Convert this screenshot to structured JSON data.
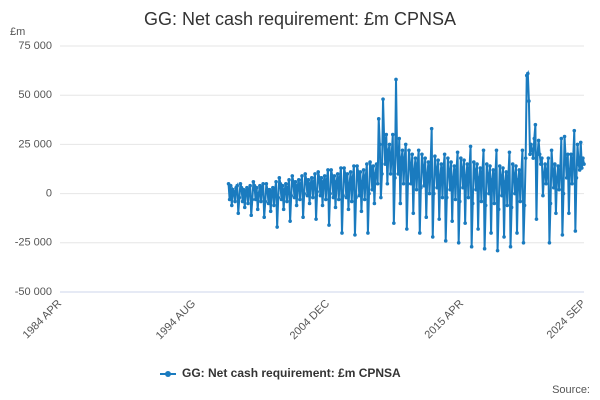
{
  "chart_data": {
    "type": "line",
    "title": "GG: Net cash requirement: £m CPNSA",
    "y_unit": "£m",
    "source": "Source:",
    "categories": [
      "1984 APR",
      null,
      null,
      null,
      null,
      null,
      null,
      null,
      null,
      null,
      null,
      null,
      null,
      null,
      null,
      null,
      null,
      null,
      null,
      null,
      null,
      null,
      null,
      null,
      null,
      null,
      null,
      null,
      null,
      null,
      null,
      null,
      null,
      null,
      null,
      null,
      null,
      null,
      null,
      null,
      null,
      null,
      null,
      null,
      null,
      null,
      null,
      null,
      null,
      null,
      null,
      null,
      null,
      null,
      null,
      null,
      null,
      null,
      null,
      null,
      null,
      null,
      null,
      null,
      null,
      null,
      null,
      null,
      null,
      null,
      null,
      null,
      null,
      null,
      null,
      null,
      null,
      null,
      null,
      null,
      null,
      null,
      null,
      null,
      null,
      null,
      null,
      null,
      null,
      null,
      null,
      null,
      null,
      null,
      null,
      null,
      null,
      null,
      null,
      null,
      null,
      null,
      null,
      null,
      null,
      null,
      null,
      null,
      null,
      null,
      null,
      null,
      null,
      null,
      null,
      null,
      null,
      null,
      null,
      null,
      null,
      null,
      null,
      null,
      "1994 AUG",
      null,
      null,
      null,
      null,
      null,
      null,
      null,
      null,
      null,
      null,
      null,
      null,
      null,
      null,
      null,
      null,
      null,
      null,
      null,
      null,
      null,
      null,
      null,
      null,
      null,
      null,
      null,
      null,
      null,
      null,
      null,
      null,
      null,
      null,
      null,
      null,
      null,
      null,
      null,
      null,
      null,
      null,
      null,
      null,
      null,
      null,
      null,
      null,
      null,
      null,
      null,
      null,
      null,
      null,
      null,
      null,
      null,
      null,
      null,
      null,
      null,
      null,
      null,
      null,
      null,
      null,
      null,
      null,
      null,
      null,
      null,
      null,
      null,
      null,
      null,
      null,
      null,
      null,
      null,
      null,
      null,
      null,
      null,
      null,
      null,
      null,
      null,
      null,
      null,
      null,
      null,
      null,
      null,
      null,
      null,
      null,
      null,
      null,
      null,
      null,
      null,
      null,
      null,
      null,
      null,
      null,
      null,
      null,
      null,
      null,
      null,
      null,
      null,
      null,
      null,
      null,
      null,
      null,
      null,
      null,
      null,
      null,
      null,
      "2004 DEC",
      null,
      null,
      null,
      null,
      null,
      null,
      null,
      null,
      null,
      null,
      null,
      null,
      null,
      null,
      null,
      null,
      null,
      null,
      null,
      null,
      null,
      null,
      null,
      null,
      null,
      null,
      null,
      null,
      null,
      null,
      null,
      null,
      null,
      null,
      null,
      null,
      null,
      null,
      null,
      null,
      null,
      null,
      null,
      null,
      null,
      null,
      null,
      null,
      null,
      null,
      null,
      null,
      null,
      null,
      null,
      null,
      null,
      null,
      null,
      null,
      null,
      null,
      null,
      null,
      null,
      null,
      null,
      null,
      null,
      null,
      null,
      null,
      null,
      null,
      null,
      null,
      null,
      null,
      null,
      null,
      null,
      null,
      null,
      null,
      null,
      null,
      null,
      null,
      null,
      null,
      null,
      null,
      null,
      null,
      null,
      null,
      null,
      null,
      null,
      null,
      null,
      null,
      null,
      null,
      null,
      null,
      null,
      null,
      null,
      null,
      null,
      null,
      null,
      null,
      null,
      null,
      null,
      null,
      null,
      null,
      null,
      null,
      null,
      "2015 APR",
      null,
      null,
      null,
      null,
      null,
      null,
      null,
      null,
      null,
      null,
      null,
      null,
      null,
      null,
      null,
      null,
      null,
      null,
      null,
      null,
      null,
      null,
      null,
      null,
      null,
      null,
      null,
      null,
      null,
      null,
      null,
      null,
      null,
      null,
      null,
      null,
      null,
      null,
      null,
      null,
      null,
      null,
      null,
      null,
      null,
      null,
      null,
      null,
      null,
      null,
      null,
      null,
      null,
      null,
      null,
      null,
      null,
      null,
      null,
      null,
      null,
      null,
      null,
      null,
      null,
      null,
      null,
      null,
      null,
      null,
      null,
      null,
      null,
      null,
      null,
      null,
      null,
      null,
      null,
      null,
      null,
      null,
      null,
      null,
      null,
      null,
      null,
      null,
      null,
      null,
      null,
      null,
      null,
      null,
      null,
      null,
      null,
      null,
      null,
      null,
      null,
      null,
      null,
      null,
      null,
      null,
      null,
      null,
      null,
      null,
      null,
      null,
      "2024 SEP"
    ],
    "series": [
      {
        "name": "GG: Net cash requirement: £m CPNSA",
        "color": "#1a7bbf",
        "values": [
          null,
          null,
          null,
          null,
          null,
          null,
          null,
          null,
          null,
          null,
          null,
          null,
          null,
          null,
          null,
          null,
          null,
          null,
          null,
          null,
          null,
          null,
          null,
          null,
          null,
          null,
          null,
          null,
          null,
          null,
          null,
          null,
          null,
          null,
          null,
          null,
          null,
          null,
          null,
          null,
          null,
          null,
          null,
          null,
          null,
          null,
          null,
          null,
          null,
          null,
          null,
          null,
          null,
          null,
          null,
          null,
          null,
          null,
          null,
          null,
          null,
          null,
          null,
          null,
          null,
          null,
          null,
          null,
          null,
          null,
          null,
          null,
          null,
          null,
          null,
          null,
          null,
          null,
          null,
          null,
          null,
          null,
          null,
          null,
          null,
          null,
          null,
          null,
          null,
          null,
          null,
          null,
          null,
          null,
          null,
          null,
          null,
          null,
          null,
          null,
          null,
          null,
          null,
          null,
          null,
          null,
          null,
          null,
          null,
          null,
          null,
          null,
          null,
          null,
          null,
          null,
          null,
          null,
          null,
          null,
          null,
          null,
          null,
          null,
          null,
          null,
          null,
          null,
          null,
          null,
          null,
          null,
          null,
          null,
          null,
          null,
          null,
          null,
          null,
          null,
          null,
          null,
          null,
          null,
          null,
          null,
          null,
          null,
          null,
          null,
          null,
          null,
          null,
          null,
          null,
          null,
          5000,
          -3000,
          4000,
          -6000,
          2000,
          1000,
          -4000,
          3000,
          4000,
          -10000,
          -2000,
          5000,
          3000,
          -4000,
          2000,
          -7000,
          1000,
          3000,
          -5000,
          2000,
          4000,
          -11000,
          -3000,
          6000,
          4000,
          -3000,
          3000,
          -8000,
          0,
          4000,
          -4000,
          3000,
          5000,
          -12000,
          -4000,
          5000,
          2000,
          -5000,
          2000,
          -9000,
          1000,
          3000,
          -6000,
          2000,
          6000,
          -17000,
          -2000,
          8000,
          5000,
          -3000,
          4000,
          -8000,
          2000,
          5000,
          -4000,
          3000,
          7000,
          -14000,
          -1000,
          9000,
          6000,
          -2000,
          6000,
          -6000,
          4000,
          7000,
          -3000,
          5000,
          9000,
          -12000,
          0,
          10000,
          7000,
          -1000,
          7000,
          -5000,
          5000,
          8000,
          -2000,
          6000,
          10000,
          -13000,
          1000,
          11000,
          8000,
          -1000,
          8000,
          -6000,
          6000,
          9000,
          -3000,
          7000,
          12000,
          -16000,
          0,
          12000,
          9000,
          -2000,
          9000,
          -7000,
          6000,
          10000,
          -3000,
          8000,
          13000,
          -20000,
          -1000,
          13000,
          10000,
          -2000,
          10000,
          -8000,
          5000,
          11000,
          -4000,
          8000,
          14000,
          -21000,
          -2000,
          14000,
          11000,
          -1000,
          11000,
          -9000,
          6000,
          12000,
          -3000,
          9000,
          15000,
          -20000,
          0,
          16000,
          13000,
          2000,
          14000,
          -5000,
          10000,
          15000,
          5000,
          38000,
          25000,
          -2000,
          10000,
          48000,
          28000,
          15000,
          30000,
          5000,
          22000,
          25000,
          10000,
          20000,
          30000,
          -15000,
          8000,
          58000,
          20000,
          10000,
          28000,
          -5000,
          18000,
          22000,
          5000,
          18000,
          25000,
          -18000,
          5000,
          22000,
          15000,
          5000,
          20000,
          -10000,
          12000,
          18000,
          2000,
          15000,
          22000,
          -20000,
          3000,
          20000,
          14000,
          4000,
          18000,
          -12000,
          10000,
          16000,
          0,
          14000,
          33000,
          -22000,
          0,
          19000,
          13000,
          3000,
          17000,
          -13000,
          9000,
          15000,
          -2000,
          13000,
          20000,
          -24000,
          -2000,
          18000,
          12000,
          2000,
          16000,
          -14000,
          8000,
          14000,
          -3000,
          12000,
          21000,
          -25000,
          -4000,
          18000,
          13000,
          3000,
          17000,
          -15000,
          9000,
          15000,
          -2000,
          13000,
          24000,
          -27000,
          -5000,
          16000,
          12000,
          2000,
          15000,
          -18000,
          8000,
          13000,
          -4000,
          11000,
          22000,
          -28000,
          -6000,
          15000,
          10000,
          0,
          14000,
          -20000,
          7000,
          12000,
          -5000,
          10000,
          22000,
          -29000,
          -8000,
          14000,
          9000,
          -1000,
          13000,
          -22000,
          6000,
          11000,
          -6000,
          9000,
          21000,
          -27000,
          -7000,
          15000,
          10000,
          0,
          14000,
          -20000,
          7000,
          12000,
          -4000,
          10000,
          22000,
          -25000,
          -6000,
          18000,
          60000,
          61000,
          47000,
          20000,
          25000,
          22000,
          18000,
          28000,
          35000,
          -13000,
          20000,
          27000,
          20000,
          15000,
          18000,
          -1000,
          10000,
          15000,
          5000,
          12000,
          18000,
          -25000,
          -5000,
          22000,
          12000,
          3000,
          15000,
          -10000,
          8000,
          14000,
          2000,
          12000,
          28000,
          -21000,
          0,
          29000,
          18000,
          8000,
          20000,
          -10000,
          12000,
          20000,
          5000,
          18000,
          32000,
          -19000,
          8000,
          25000,
          15000,
          12000,
          26000,
          13000,
          18000,
          15000
        ]
      }
    ],
    "ylim": [
      -50000,
      75000
    ],
    "yticks": [
      {
        "value": -50000,
        "label": "-50 000"
      },
      {
        "value": -25000,
        "label": "-25 000"
      },
      0,
      {
        "value": 25000,
        "label": "25 000"
      },
      {
        "value": 50000,
        "label": "50 000"
      },
      {
        "value": 75000,
        "label": "75 000"
      }
    ],
    "grid": true,
    "legend": "bottom"
  }
}
